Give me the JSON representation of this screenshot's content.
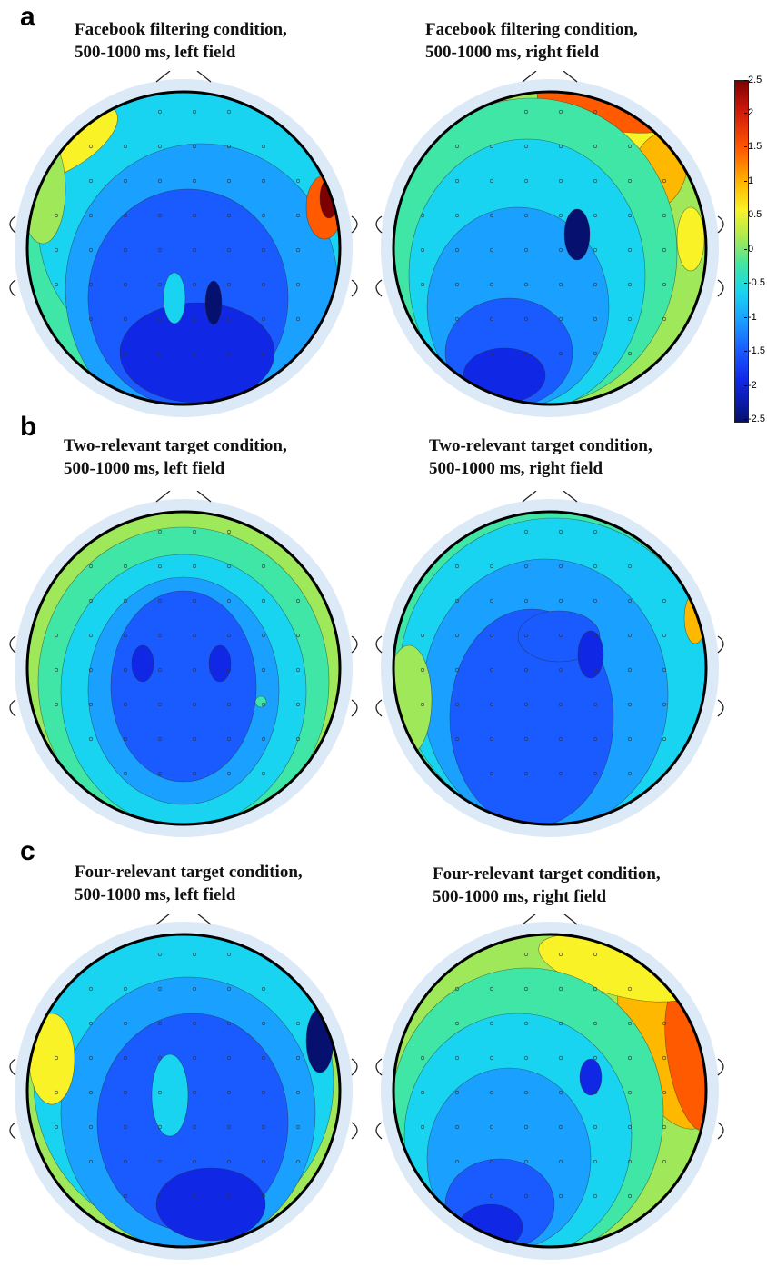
{
  "panels": [
    {
      "letter": "a",
      "maps": [
        {
          "title_line1": "Facebook filtering condition,",
          "title_line2": "500-1000 ms, left field"
        },
        {
          "title_line1": "Facebook filtering condition,",
          "title_line2": "500-1000 ms, right field"
        }
      ]
    },
    {
      "letter": "b",
      "maps": [
        {
          "title_line1": "Two-relevant target condition,",
          "title_line2": "500-1000 ms, left field"
        },
        {
          "title_line1": "Two-relevant target condition,",
          "title_line2": "500-1000 ms, right field"
        }
      ]
    },
    {
      "letter": "c",
      "maps": [
        {
          "title_line1": "Four-relevant target condition,",
          "title_line2": "500-1000 ms, left field"
        },
        {
          "title_line1": "Four-relevant target condition,",
          "title_line2": "500-1000 ms, right field"
        }
      ]
    }
  ],
  "colorbar": {
    "ticks": [
      "2.5",
      "2",
      "1.5",
      "1",
      "0.5",
      "0",
      "-0.5",
      "-1",
      "-1.5",
      "-2",
      "-2.5"
    ],
    "colors": [
      "#7f0000",
      "#d11a0b",
      "#ff5a00",
      "#ffb800",
      "#f8f227",
      "#9ee85a",
      "#3fe6a5",
      "#19d4f0",
      "#1aa0ff",
      "#1a5bff",
      "#1028e6",
      "#06106e"
    ]
  }
}
